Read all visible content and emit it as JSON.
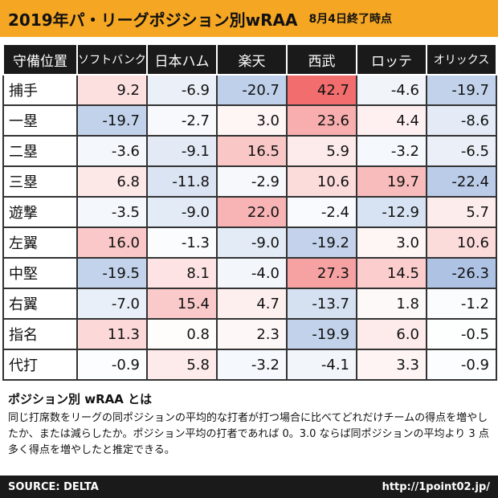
{
  "title": "2019年パ・リーグポジション別wRAA",
  "date_note": "8月4日終了時点",
  "chart_data": {
    "type": "table",
    "corner_header": "守備位置",
    "teams": [
      "ソフトバンク",
      "日本ハム",
      "楽天",
      "西武",
      "ロッテ",
      "オリックス"
    ],
    "rows": [
      {
        "position": "捕手",
        "values": [
          "9.2",
          "-6.9",
          "-20.7",
          "42.7",
          "-4.6",
          "-19.7"
        ]
      },
      {
        "position": "一塁",
        "values": [
          "-19.7",
          "-2.7",
          "3.0",
          "23.6",
          "4.4",
          "-8.6"
        ]
      },
      {
        "position": "二塁",
        "values": [
          "-3.6",
          "-9.1",
          "16.5",
          "5.9",
          "-3.2",
          "-6.5"
        ]
      },
      {
        "position": "三塁",
        "values": [
          "6.8",
          "-11.8",
          "-2.9",
          "10.6",
          "19.7",
          "-22.4"
        ]
      },
      {
        "position": "遊撃",
        "values": [
          "-3.5",
          "-9.0",
          "22.0",
          "-2.4",
          "-12.9",
          "5.7"
        ]
      },
      {
        "position": "左翼",
        "values": [
          "16.0",
          "-1.3",
          "-9.0",
          "-19.2",
          "3.0",
          "10.6"
        ]
      },
      {
        "position": "中堅",
        "values": [
          "-19.5",
          "8.1",
          "-4.0",
          "27.3",
          "14.5",
          "-26.3"
        ]
      },
      {
        "position": "右翼",
        "values": [
          "-7.0",
          "15.4",
          "4.7",
          "-13.7",
          "1.8",
          "-1.2"
        ]
      },
      {
        "position": "指名",
        "values": [
          "11.3",
          "0.8",
          "2.3",
          "-19.9",
          "6.0",
          "-0.5"
        ]
      },
      {
        "position": "代打",
        "values": [
          "-0.9",
          "5.8",
          "-3.2",
          "-4.1",
          "3.3",
          "-0.9"
        ]
      }
    ],
    "colors": {
      "positive": "#f26d6d",
      "negative": "#7b9ed3",
      "neutral": "#ffffff"
    }
  },
  "explanation": {
    "title": "ポジション別 wRAA とは",
    "text": "同じ打席数をリーグの同ポジションの平均的な打者が打つ場合に比べてどれだけチームの得点を増やしたか、または減らしたか。ポジション平均の打者であれば 0。3.0 ならば同ポジションの平均より 3 点多く得点を増やしたと推定できる。"
  },
  "footer": {
    "source": "SOURCE: DELTA",
    "url": "http://1point02.jp/"
  }
}
